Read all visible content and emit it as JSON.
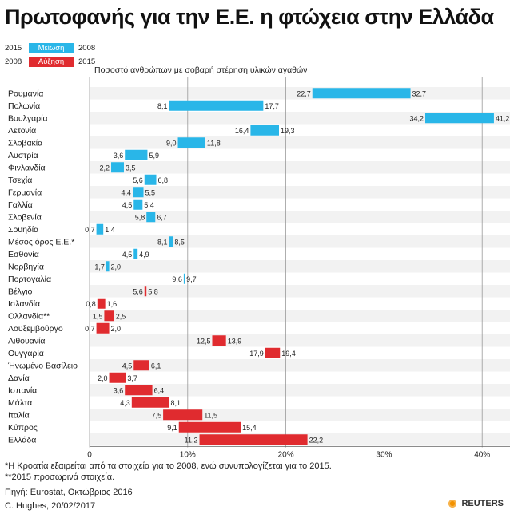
{
  "title": "Πρωτοφανής για την Ε.Ε. η φτώχεια στην Ελλάδα",
  "legend": [
    {
      "left_year": "2015",
      "label": "Μείωση",
      "right_year": "2008",
      "color": "#29b6e8"
    },
    {
      "left_year": "2008",
      "label": "Αύξηση",
      "right_year": "2015",
      "color": "#e02b2f"
    }
  ],
  "chart_data": {
    "type": "bar",
    "subtitle": "Ποσοστό ανθρώπων με σοβαρή στέρηση υλικών αγαθών",
    "xlim": [
      0,
      43
    ],
    "ticks": [
      {
        "value": 0,
        "label": "0"
      },
      {
        "value": 10,
        "label": "10%"
      },
      {
        "value": 20,
        "label": "20%"
      },
      {
        "value": 30,
        "label": "30%"
      },
      {
        "value": 40,
        "label": "40%"
      }
    ],
    "series": [
      {
        "name": "Μείωση",
        "color": "#29b6e8"
      },
      {
        "name": "Αύξηση",
        "color": "#e02b2f"
      }
    ],
    "rows": [
      {
        "country": "Ρουμανία",
        "low": "22,7",
        "high": "32,7",
        "low_v": 22.7,
        "high_v": 32.7,
        "dir": "dec"
      },
      {
        "country": "Πολωνία",
        "low": "8,1",
        "high": "17,7",
        "low_v": 8.1,
        "high_v": 17.7,
        "dir": "dec"
      },
      {
        "country": "Βουλγαρία",
        "low": "34,2",
        "high": "41,2",
        "low_v": 34.2,
        "high_v": 41.2,
        "dir": "dec"
      },
      {
        "country": "Λετονία",
        "low": "16,4",
        "high": "19,3",
        "low_v": 16.4,
        "high_v": 19.3,
        "dir": "dec"
      },
      {
        "country": "Σλοβακία",
        "low": "9,0",
        "high": "11,8",
        "low_v": 9.0,
        "high_v": 11.8,
        "dir": "dec"
      },
      {
        "country": "Αυστρία",
        "low": "3,6",
        "high": "5,9",
        "low_v": 3.6,
        "high_v": 5.9,
        "dir": "dec"
      },
      {
        "country": "Φινλανδία",
        "low": "2,2",
        "high": "3,5",
        "low_v": 2.2,
        "high_v": 3.5,
        "dir": "dec"
      },
      {
        "country": "Τσεχία",
        "low": "5,6",
        "high": "6,8",
        "low_v": 5.6,
        "high_v": 6.8,
        "dir": "dec"
      },
      {
        "country": "Γερμανία",
        "low": "4,4",
        "high": "5,5",
        "low_v": 4.4,
        "high_v": 5.5,
        "dir": "dec"
      },
      {
        "country": "Γαλλία",
        "low": "4,5",
        "high": "5,4",
        "low_v": 4.5,
        "high_v": 5.4,
        "dir": "dec"
      },
      {
        "country": "Σλοβενία",
        "low": "5,8",
        "high": "6,7",
        "low_v": 5.8,
        "high_v": 6.7,
        "dir": "dec"
      },
      {
        "country": "Σουηδία",
        "low": "0,7",
        "high": "1,4",
        "low_v": 0.7,
        "high_v": 1.4,
        "dir": "dec"
      },
      {
        "country": "Μέσος όρος Ε.Ε.*",
        "low": "8,1",
        "high": "8,5",
        "low_v": 8.1,
        "high_v": 8.5,
        "dir": "dec"
      },
      {
        "country": "Εσθονία",
        "low": "4,5",
        "high": "4,9",
        "low_v": 4.5,
        "high_v": 4.9,
        "dir": "dec"
      },
      {
        "country": "Νορβηγία",
        "low": "1,7",
        "high": "2,0",
        "low_v": 1.7,
        "high_v": 2.0,
        "dir": "dec"
      },
      {
        "country": "Πορτογαλία",
        "low": "9,6",
        "high": "9,7",
        "low_v": 9.6,
        "high_v": 9.7,
        "dir": "dec"
      },
      {
        "country": "Βέλγιο",
        "low": "5,6",
        "high": "5,8",
        "low_v": 5.6,
        "high_v": 5.8,
        "dir": "inc"
      },
      {
        "country": "Ισλανδία",
        "low": "0,8",
        "high": "1,6",
        "low_v": 0.8,
        "high_v": 1.6,
        "dir": "inc"
      },
      {
        "country": "Ολλανδία**",
        "low": "1,5",
        "high": "2,5",
        "low_v": 1.5,
        "high_v": 2.5,
        "dir": "inc"
      },
      {
        "country": "Λουξεμβούργο",
        "low": "0,7",
        "high": "2,0",
        "low_v": 0.7,
        "high_v": 2.0,
        "dir": "inc"
      },
      {
        "country": "Λιθουανία",
        "low": "12,5",
        "high": "13,9",
        "low_v": 12.5,
        "high_v": 13.9,
        "dir": "inc"
      },
      {
        "country": "Ουγγαρία",
        "low": "17,9",
        "high": "19,4",
        "low_v": 17.9,
        "high_v": 19.4,
        "dir": "inc"
      },
      {
        "country": "Ήνωμένο Βασίλειο",
        "low": "4,5",
        "high": "6,1",
        "low_v": 4.5,
        "high_v": 6.1,
        "dir": "inc"
      },
      {
        "country": "Δανία",
        "low": "2,0",
        "high": "3,7",
        "low_v": 2.0,
        "high_v": 3.7,
        "dir": "inc"
      },
      {
        "country": "Ισπανία",
        "low": "3,6",
        "high": "6,4",
        "low_v": 3.6,
        "high_v": 6.4,
        "dir": "inc"
      },
      {
        "country": "Μάλτα",
        "low": "4,3",
        "high": "8,1",
        "low_v": 4.3,
        "high_v": 8.1,
        "dir": "inc"
      },
      {
        "country": "Ιταλία",
        "low": "7,5",
        "high": "11,5",
        "low_v": 7.5,
        "high_v": 11.5,
        "dir": "inc"
      },
      {
        "country": "Κύπρος",
        "low": "9,1",
        "high": "15,4",
        "low_v": 9.1,
        "high_v": 15.4,
        "dir": "inc"
      },
      {
        "country": "Ελλάδα",
        "low": "11,2",
        "high": "22,2",
        "low_v": 11.2,
        "high_v": 22.2,
        "dir": "inc"
      }
    ]
  },
  "footnotes": {
    "note1": "*Η Κροατία εξαιρείται από τα στοιχεία για το 2008, ενώ συνυπολογίζεται για το 2015.",
    "note2": "**2015 προσωρινά στοιχεία.",
    "source": "Πηγή: Eurostat, Οκτώβριος 2016",
    "credit": "C. Hughes, 20/02/2017",
    "brand": "REUTERS"
  }
}
